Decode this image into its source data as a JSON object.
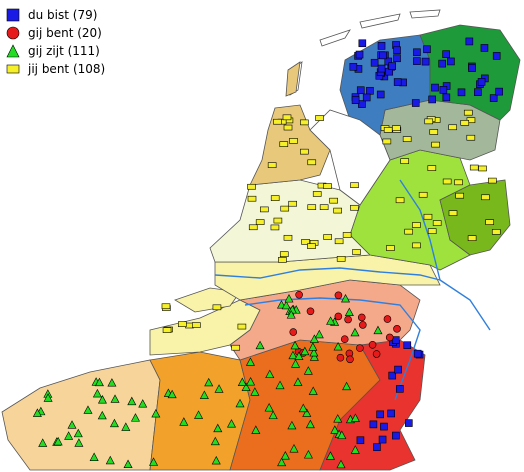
{
  "legend": {
    "items": [
      {
        "label": "du bist (79)",
        "shape": "square",
        "color": "#1a1ae6"
      },
      {
        "label": "gij bent (20)",
        "shape": "circle",
        "color": "#e61a1a"
      },
      {
        "label": "gij zijt (111)",
        "shape": "triangle",
        "color": "#22dd22"
      },
      {
        "label": "jij bent (108)",
        "shape": "rect",
        "color": "#f5f02a"
      }
    ]
  },
  "colors": {
    "northeast_blue": "#3e7dc0",
    "northeast_green": "#1f9a3a",
    "groningen_gray": "#a3b79a",
    "drenthe_lime": "#9fe23d",
    "overijssel_green": "#79b81c",
    "holland_light": "#f3f7d8",
    "noordholland_tan": "#e8c87a",
    "zeeland_yellow": "#f8f3a8",
    "brabant_salmon": "#f4a98a",
    "flanders_light": "#f7d49a",
    "flanders_orange": "#f2a12b",
    "brabant_orange": "#eb6e1e",
    "limburg_red": "#e8332e",
    "water": "#2f7fe0"
  }
}
